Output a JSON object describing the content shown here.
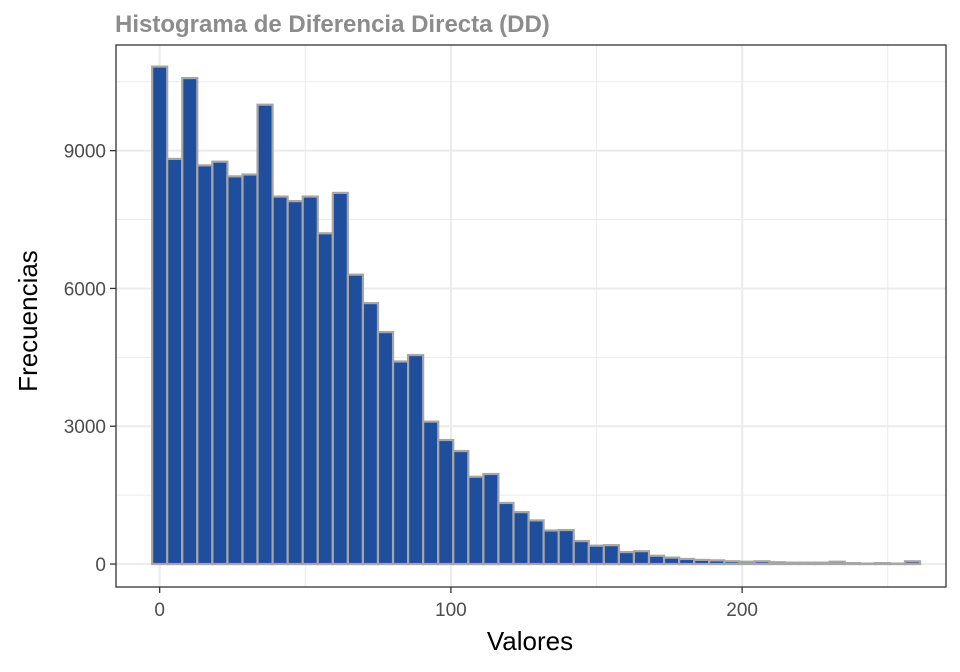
{
  "chart_data": {
    "type": "bar",
    "title": "Histograma de Diferencia Directa (DD)",
    "xlabel": "Valores",
    "ylabel": "Frecuencias",
    "xlim": [
      -15,
      270
    ],
    "ylim": [
      -500,
      11300
    ],
    "x_ticks": [
      0,
      100,
      200
    ],
    "y_ticks": [
      0,
      3000,
      6000,
      9000
    ],
    "x_tick_labels": [
      "0",
      "100",
      "200"
    ],
    "y_tick_labels": [
      "0",
      "3000",
      "6000",
      "9000"
    ],
    "bin_width": 5.17,
    "bin_start": -2.59,
    "values": [
      10830,
      8820,
      10580,
      8680,
      8760,
      8440,
      8480,
      10000,
      8000,
      7900,
      8000,
      7200,
      8080,
      6300,
      5680,
      5050,
      4410,
      4550,
      3100,
      2700,
      2460,
      1900,
      1960,
      1330,
      1130,
      950,
      730,
      740,
      500,
      400,
      410,
      260,
      280,
      180,
      140,
      110,
      90,
      80,
      60,
      50,
      60,
      40,
      30,
      30,
      30,
      50,
      20,
      10,
      20,
      10,
      60
    ],
    "bar_fill": "#1f4e9c",
    "bar_outline": "#a6a6a6",
    "grid": true,
    "grid_color": "#ebebeb",
    "legend": "none"
  }
}
